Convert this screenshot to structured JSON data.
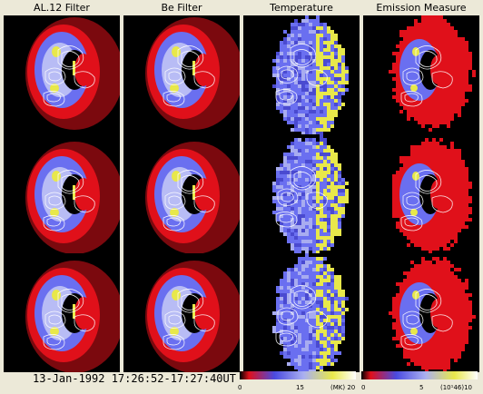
{
  "columns": [
    {
      "label": "AL.12 Filter",
      "kind": "intensity"
    },
    {
      "label": "Be Filter",
      "kind": "intensity"
    },
    {
      "label": "Temperature",
      "kind": "temperature"
    },
    {
      "label": "Emission Measure",
      "kind": "emission"
    }
  ],
  "rows": 3,
  "footer": {
    "date_range": "13-Jan-1992  17:26:52-17:27:40UT"
  },
  "colorbars": [
    {
      "name": "temperature",
      "ticks": [
        "0",
        "15",
        "(MK) 20"
      ]
    },
    {
      "name": "emission-measure",
      "ticks": [
        "0",
        "5",
        "(10¹46)10"
      ]
    }
  ],
  "colors": {
    "background": "#ece9d8",
    "panel": "#000000",
    "red": "#e0101a",
    "blue": "#6a6ff0",
    "yellow": "#e8e84a",
    "contour": "#ffffff"
  }
}
